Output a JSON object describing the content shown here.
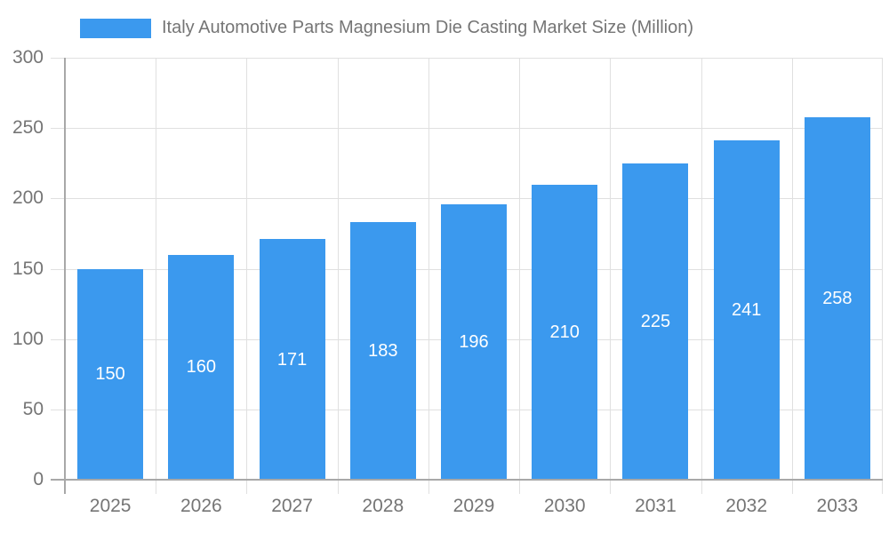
{
  "chart_data": {
    "type": "bar",
    "title": "Italy Automotive Parts Magnesium Die Casting Market Size (Million)",
    "categories": [
      "2025",
      "2026",
      "2027",
      "2028",
      "2029",
      "2030",
      "2031",
      "2032",
      "2033"
    ],
    "values": [
      150,
      160,
      171,
      183,
      196,
      210,
      225,
      241,
      258
    ],
    "xlabel": "",
    "ylabel": "",
    "ylim": [
      0,
      300
    ],
    "yticks": [
      0,
      50,
      100,
      150,
      200,
      250,
      300
    ],
    "grid": true,
    "legend_position": "top-left",
    "value_labels": "inside-center",
    "colors": {
      "bar": "#3B99EE",
      "grid": "#E0E0E0",
      "axis_line": "#A8A8A8",
      "axis_text": "#757575",
      "value_text": "#FFFFFF",
      "background": "#FFFFFF"
    }
  }
}
